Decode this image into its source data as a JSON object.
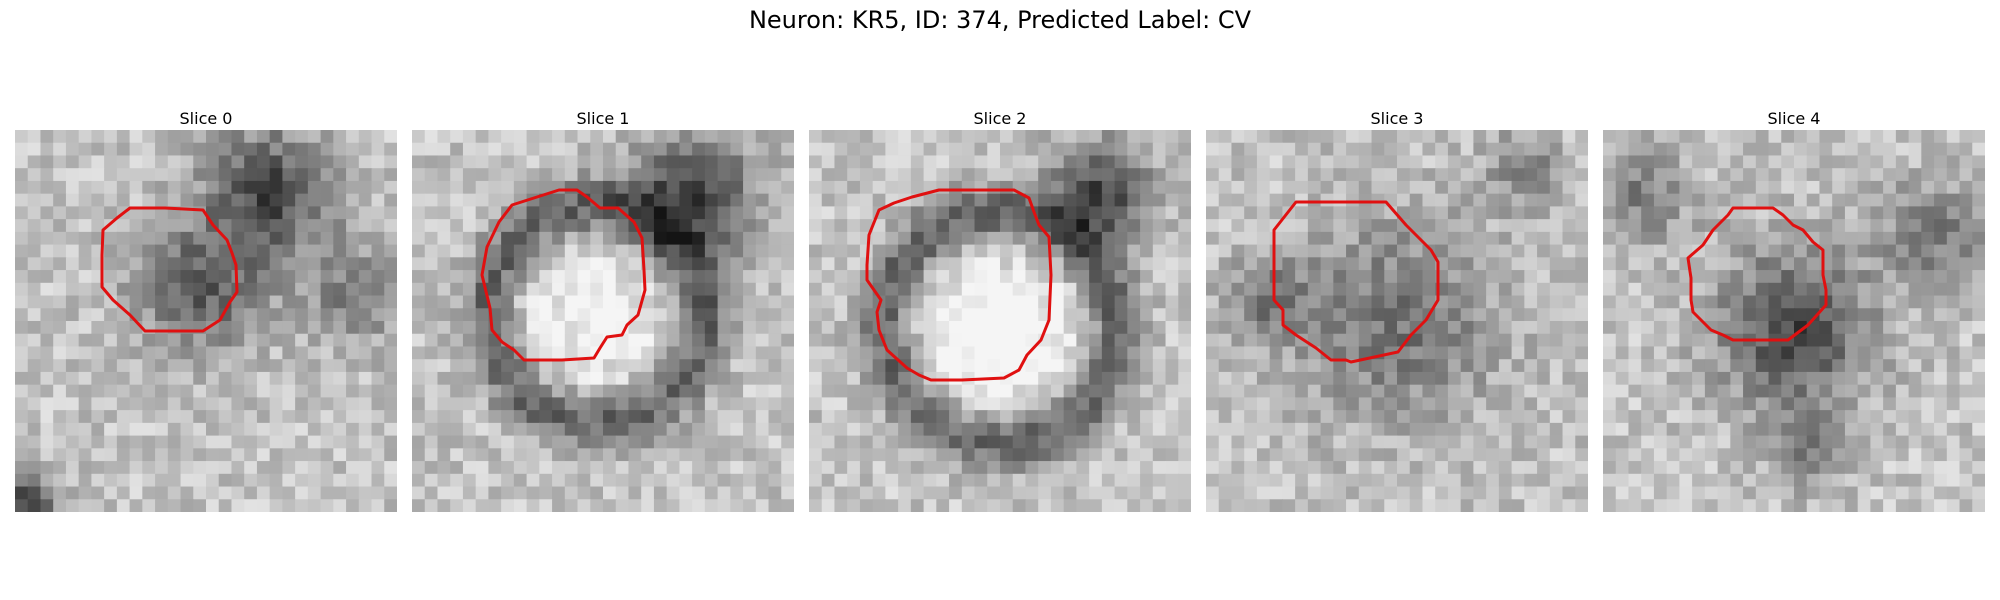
{
  "figure": {
    "title": "Neuron: KR5, ID: 374, Predicted Label: CV"
  },
  "contour_color": "#e01010",
  "panels": [
    {
      "title": "Slice 0",
      "content": "grayscale micrograph patch, dark granular blob outlined by red contour"
    },
    {
      "title": "Slice 1",
      "content": "grayscale micrograph patch, bright round vesicle with dark rim outlined by red contour"
    },
    {
      "title": "Slice 2",
      "content": "grayscale micrograph patch, bright round vesicle with dark rim outlined by red contour"
    },
    {
      "title": "Slice 3",
      "content": "grayscale micrograph patch, mottled gray region outlined by red contour"
    },
    {
      "title": "Slice 4",
      "content": "grayscale micrograph patch, dark blob outlined by red contour"
    }
  ]
}
